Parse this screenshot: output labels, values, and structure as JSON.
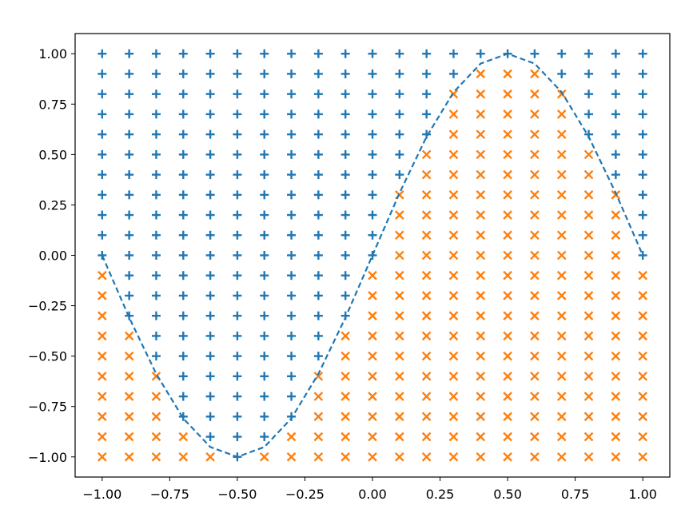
{
  "chart_data": {
    "type": "scatter",
    "title": "",
    "xlabel": "",
    "ylabel": "",
    "xlim": [
      -1.1,
      1.1
    ],
    "ylim": [
      -1.1,
      1.1
    ],
    "grid": false,
    "legend": "none",
    "x_ticks": [
      "−1.00",
      "−0.75",
      "−0.50",
      "−0.25",
      "0.00",
      "0.25",
      "0.50",
      "0.75",
      "1.00"
    ],
    "y_ticks": [
      "1.00",
      "0.75",
      "0.50",
      "0.25",
      "0.00",
      "−0.25",
      "−0.50",
      "−0.75",
      "−1.00"
    ],
    "grid_points": {
      "x_start": -1.0,
      "x_step": 0.1,
      "x_count": 21,
      "y_start": -1.0,
      "y_step": 0.1,
      "y_count": 21,
      "rule": "plus marker where y >= sin(pi*x), x marker where y < sin(pi*x)"
    },
    "series": [
      {
        "marker": "plus",
        "color": "#1f77b4",
        "values_rule": "y >= sin(pi*x)"
      },
      {
        "marker": "x",
        "color": "#ff7f0e",
        "values_rule": "y < sin(pi*x)"
      }
    ],
    "curve": {
      "function": "sin(pi*x)",
      "style": "dashed",
      "color": "#1f77b4",
      "x": [
        -1.0,
        -0.9,
        -0.8,
        -0.7,
        -0.6,
        -0.5,
        -0.4,
        -0.3,
        -0.2,
        -0.1,
        0.0,
        0.1,
        0.2,
        0.3,
        0.4,
        0.5,
        0.6,
        0.7,
        0.8,
        0.9,
        1.0
      ],
      "y": [
        0.0,
        -0.309,
        -0.588,
        -0.809,
        -0.951,
        -1.0,
        -0.951,
        -0.809,
        -0.588,
        -0.309,
        0.0,
        0.309,
        0.588,
        0.809,
        0.951,
        1.0,
        0.951,
        0.809,
        0.588,
        0.309,
        0.0
      ]
    },
    "colors": {
      "plus": "#1f77b4",
      "x": "#ff7f0e",
      "curve": "#1f77b4"
    }
  }
}
